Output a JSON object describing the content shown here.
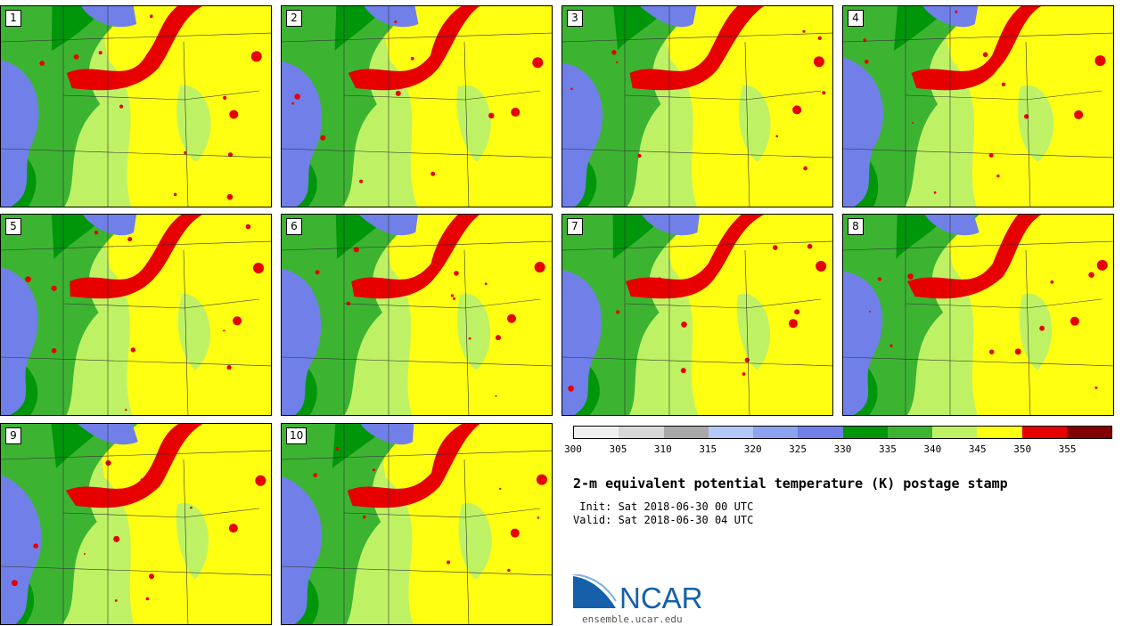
{
  "panels": [
    {
      "label": "1"
    },
    {
      "label": "2"
    },
    {
      "label": "3"
    },
    {
      "label": "4"
    },
    {
      "label": "5"
    },
    {
      "label": "6"
    },
    {
      "label": "7"
    },
    {
      "label": "8"
    },
    {
      "label": "9"
    },
    {
      "label": "10"
    }
  ],
  "colorbar": {
    "colors": [
      "#f0f0f0",
      "#d8d8d8",
      "#a8a8a8",
      "#b4c8f8",
      "#8ca4f0",
      "#7080e8",
      "#00960a",
      "#3cb432",
      "#bef264",
      "#ffff12",
      "#e60000",
      "#820000"
    ],
    "ticks": [
      "300",
      "305",
      "310",
      "315",
      "320",
      "325",
      "330",
      "335",
      "340",
      "345",
      "350",
      "355"
    ]
  },
  "title": "2-m equivalent potential temperature (K) postage stamp",
  "init": " Init: Sat 2018-06-30 00 UTC",
  "valid": "Valid: Sat 2018-06-30 04 UTC",
  "logo": {
    "text": "NCAR",
    "url": "ensemble.ucar.edu",
    "color": "#1560a8"
  }
}
